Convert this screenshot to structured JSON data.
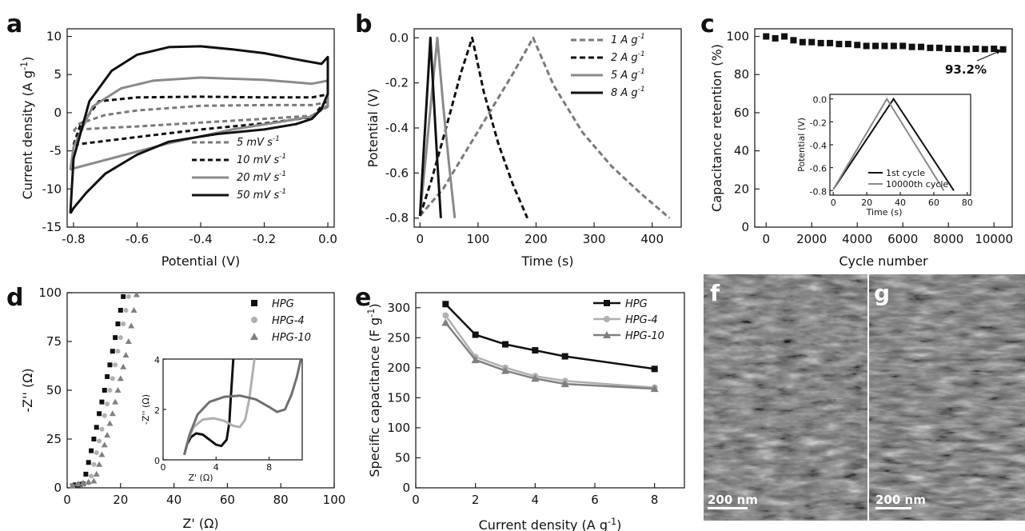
{
  "panel_labels": {
    "a": "a",
    "b": "b",
    "c": "c",
    "d": "d",
    "e": "e",
    "f": "f",
    "g": "g"
  },
  "chart_data": [
    {
      "id": "a",
      "type": "line",
      "xlabel": "Potential (V)",
      "ylabel": "Current density (A g⁻¹)",
      "xlim": [
        -0.82,
        0.02
      ],
      "ylim": [
        -15,
        11
      ],
      "xticks": [
        -0.8,
        -0.6,
        -0.4,
        -0.2,
        0.0
      ],
      "xtick_labels": [
        "-0.8",
        "-0.6",
        "-0.4",
        "-0.2",
        "0.0"
      ],
      "yticks": [
        -15,
        -10,
        -5,
        0,
        5,
        10
      ],
      "ytick_labels": [
        "-15",
        "-10",
        "-5",
        "0",
        "5",
        "10"
      ],
      "legend_position": "bottom-right",
      "series": [
        {
          "name": "5 mV s",
          "sup": "-1",
          "color": "#7a7a7a",
          "dash": "6,4",
          "x": [
            -0.8,
            -0.78,
            -0.7,
            -0.6,
            -0.4,
            -0.2,
            -0.05,
            0.0,
            0.0,
            -0.05,
            -0.2,
            -0.4,
            -0.6,
            -0.7,
            -0.78,
            -0.8
          ],
          "y": [
            -2.4,
            -1.4,
            -0.3,
            0.3,
            0.9,
            1.0,
            1.0,
            1.4,
            0.8,
            -0.4,
            -0.8,
            -1.3,
            -1.8,
            -2.0,
            -2.2,
            -2.4
          ]
        },
        {
          "name": "10 mV s",
          "sup": "-1",
          "color": "#111111",
          "dash": "6,4",
          "x": [
            -0.8,
            -0.78,
            -0.72,
            -0.6,
            -0.4,
            -0.2,
            -0.05,
            0.0,
            0.0,
            -0.05,
            -0.2,
            -0.4,
            -0.6,
            -0.72,
            -0.8
          ],
          "y": [
            -4.2,
            -1.8,
            1.5,
            2.0,
            2.1,
            2.0,
            2.0,
            2.4,
            1.8,
            -0.6,
            -1.4,
            -2.2,
            -3.2,
            -3.8,
            -4.2
          ]
        },
        {
          "name": "20 mV s",
          "sup": "-1",
          "color": "#8a8a8a",
          "dash": "",
          "x": [
            -0.81,
            -0.8,
            -0.74,
            -0.65,
            -0.55,
            -0.4,
            -0.2,
            -0.05,
            0.0,
            0.0,
            -0.05,
            -0.15,
            -0.3,
            -0.5,
            -0.7,
            -0.8,
            -0.81
          ],
          "y": [
            -7.5,
            -4.5,
            0.8,
            3.2,
            4.2,
            4.6,
            4.3,
            3.8,
            4.2,
            1.0,
            -0.5,
            -1.2,
            -2.2,
            -4.0,
            -6.2,
            -7.3,
            -7.5
          ]
        },
        {
          "name": "50 mV s",
          "sup": "-1",
          "color": "#111111",
          "dash": "",
          "x": [
            -0.81,
            -0.8,
            -0.75,
            -0.68,
            -0.6,
            -0.5,
            -0.4,
            -0.3,
            -0.2,
            -0.1,
            -0.02,
            0.0,
            0.0,
            -0.02,
            -0.05,
            -0.1,
            -0.2,
            -0.35,
            -0.5,
            -0.6,
            -0.7,
            -0.76,
            -0.8,
            -0.81
          ],
          "y": [
            -13.2,
            -6.0,
            1.5,
            5.5,
            7.6,
            8.6,
            8.7,
            8.3,
            7.8,
            7.0,
            6.4,
            7.3,
            2.5,
            0.5,
            -0.8,
            -1.5,
            -2.2,
            -2.8,
            -3.8,
            -5.5,
            -8.0,
            -10.5,
            -12.5,
            -13.2
          ]
        }
      ]
    },
    {
      "id": "b",
      "type": "line",
      "xlabel": "Time (s)",
      "ylabel": "Potential (V)",
      "xlim": [
        -10,
        450
      ],
      "ylim": [
        -0.84,
        0.04
      ],
      "xticks": [
        0,
        100,
        200,
        300,
        400
      ],
      "xtick_labels": [
        "0",
        "100",
        "200",
        "300",
        "400"
      ],
      "yticks": [
        -0.8,
        -0.6,
        -0.4,
        -0.2,
        0.0
      ],
      "ytick_labels": [
        "-0.8",
        "-0.6",
        "-0.4",
        "-0.2",
        "0.0"
      ],
      "legend_position": "top-right",
      "series": [
        {
          "name": "1 A g",
          "sup": "-1",
          "color": "#7a7a7a",
          "dash": "7,4",
          "x": [
            0,
            40,
            80,
            120,
            160,
            195,
            230,
            280,
            330,
            380,
            430
          ],
          "y": [
            -0.79,
            -0.67,
            -0.5,
            -0.33,
            -0.16,
            0.0,
            -0.21,
            -0.42,
            -0.57,
            -0.69,
            -0.8
          ]
        },
        {
          "name": "2 A g",
          "sup": "-1",
          "color": "#111111",
          "dash": "7,4",
          "x": [
            0,
            20,
            45,
            70,
            90,
            110,
            135,
            160,
            185
          ],
          "y": [
            -0.79,
            -0.63,
            -0.4,
            -0.16,
            0.0,
            -0.24,
            -0.47,
            -0.65,
            -0.8
          ]
        },
        {
          "name": "5 A g",
          "sup": "-1",
          "color": "#8a8a8a",
          "dash": "",
          "x": [
            0,
            10,
            20,
            30,
            40,
            50,
            60
          ],
          "y": [
            -0.79,
            -0.53,
            -0.26,
            0.0,
            -0.3,
            -0.56,
            -0.8
          ]
        },
        {
          "name": "8 A g",
          "sup": "-1",
          "color": "#111111",
          "dash": "",
          "x": [
            0,
            6,
            12,
            18,
            24,
            30,
            36
          ],
          "y": [
            -0.79,
            -0.52,
            -0.26,
            0.0,
            -0.28,
            -0.55,
            -0.8
          ]
        }
      ]
    },
    {
      "id": "c",
      "type": "scatter",
      "xlabel": "Cycle number",
      "ylabel": "Capacitance retention (%)",
      "xlim": [
        -500,
        10800
      ],
      "ylim": [
        0,
        104
      ],
      "xticks": [
        0,
        2000,
        4000,
        6000,
        8000,
        10000
      ],
      "xtick_labels": [
        "0",
        "2000",
        "4000",
        "6000",
        "8000",
        "10000"
      ],
      "yticks": [
        0,
        20,
        40,
        60,
        80,
        100
      ],
      "ytick_labels": [
        "0",
        "20",
        "40",
        "60",
        "80",
        "100"
      ],
      "annotation": "93.2%",
      "series": [
        {
          "name": "",
          "color": "#111111",
          "x": [
            0,
            400,
            800,
            1200,
            1600,
            2000,
            2400,
            2800,
            3200,
            3600,
            4000,
            4400,
            4800,
            5200,
            5600,
            6000,
            6400,
            6800,
            7200,
            7600,
            8000,
            8400,
            8800,
            9200,
            9600,
            10000,
            10400
          ],
          "y": [
            100,
            99,
            100,
            98,
            97,
            97,
            96.5,
            96.5,
            96,
            96,
            95.5,
            95,
            95,
            95,
            95,
            95,
            94.5,
            94.5,
            94,
            94,
            93.5,
            93.5,
            93.3,
            93.5,
            93.3,
            93.5,
            93.2
          ]
        }
      ],
      "inset": {
        "xlabel": "Time (s)",
        "ylabel": "Potential (V)",
        "xlim": [
          -2,
          82
        ],
        "ylim": [
          -0.84,
          0.04
        ],
        "xticks": [
          0,
          20,
          40,
          60,
          80
        ],
        "xtick_labels": [
          "0",
          "20",
          "40",
          "60",
          "80"
        ],
        "yticks": [
          -0.8,
          -0.6,
          -0.4,
          -0.2,
          0.0
        ],
        "ytick_labels": [
          "-0.8",
          "-0.6",
          "-0.4",
          "-0.2",
          "0.0"
        ],
        "series": [
          {
            "name": "1st cycle",
            "color": "#111111",
            "x": [
              0,
              36,
              72
            ],
            "y": [
              -0.79,
              0.0,
              -0.8
            ]
          },
          {
            "name": "10000th cycle",
            "color": "#8a8a8a",
            "x": [
              0,
              32,
              66
            ],
            "y": [
              -0.79,
              0.0,
              -0.8
            ]
          }
        ]
      }
    },
    {
      "id": "d",
      "type": "scatter",
      "xlabel": "Z' (Ω)",
      "ylabel": "-Z'' (Ω)",
      "xlim": [
        0,
        100
      ],
      "ylim": [
        0,
        100
      ],
      "xticks": [
        0,
        20,
        40,
        60,
        80,
        100
      ],
      "xtick_labels": [
        "0",
        "20",
        "40",
        "60",
        "80",
        "100"
      ],
      "yticks": [
        0,
        25,
        50,
        75,
        100
      ],
      "ytick_labels": [
        "0",
        "25",
        "50",
        "75",
        "100"
      ],
      "legend_position": "top-right",
      "series": [
        {
          "name": "HPG",
          "color": "#111111",
          "marker": "square",
          "x": [
            2,
            3,
            4,
            5,
            6,
            7,
            8,
            9,
            10,
            11,
            12,
            13,
            14,
            15,
            16,
            17,
            18,
            19,
            20,
            21
          ],
          "y": [
            1,
            1.5,
            1.5,
            1.8,
            2,
            7,
            13,
            19,
            25,
            31,
            38,
            44,
            50,
            57,
            63,
            70,
            77,
            84,
            91,
            98
          ]
        },
        {
          "name": "HPG-4",
          "color": "#b0b0b0",
          "marker": "circle",
          "x": [
            2,
            4,
            6,
            8,
            9,
            10,
            11,
            12,
            13,
            14,
            15,
            16,
            17,
            18,
            19,
            20,
            21,
            22,
            23
          ],
          "y": [
            1,
            1.8,
            2,
            2.5,
            6,
            12,
            18,
            24,
            30,
            37,
            43,
            50,
            56,
            63,
            70,
            77,
            84,
            91,
            98
          ]
        },
        {
          "name": "HPG-10",
          "color": "#808080",
          "marker": "triangle",
          "x": [
            2,
            4,
            6,
            8,
            10,
            11,
            12,
            13,
            14,
            15,
            16,
            17,
            18,
            19,
            20,
            21,
            22,
            23,
            24,
            25,
            26
          ],
          "y": [
            1,
            2,
            2.5,
            3,
            3.5,
            7,
            12,
            17,
            22,
            27,
            33,
            38,
            44,
            50,
            56,
            62,
            68,
            75,
            83,
            91,
            99
          ]
        }
      ],
      "inset": {
        "xlabel": "Z' (Ω)",
        "ylabel": "-Z'' (Ω)",
        "xlim": [
          0,
          10.5
        ],
        "ylim": [
          0,
          4
        ],
        "xticks": [
          0,
          4,
          8
        ],
        "xtick_labels": [
          "0",
          "4",
          "8"
        ],
        "yticks": [
          0,
          2,
          4
        ],
        "ytick_labels": [
          "0",
          "2",
          "4"
        ],
        "series": [
          {
            "name": "HPG",
            "color": "#111111",
            "x": [
              1.6,
              1.8,
              2.1,
              2.5,
              3.0,
              3.5,
              4.0,
              4.4,
              4.8,
              5.0,
              5.1,
              5.2,
              5.3
            ],
            "y": [
              0.2,
              0.6,
              0.9,
              1.05,
              1.0,
              0.8,
              0.6,
              0.55,
              0.8,
              1.5,
              2.4,
              3.2,
              4.0
            ]
          },
          {
            "name": "HPG-4",
            "color": "#b0b0b0",
            "x": [
              1.6,
              1.9,
              2.3,
              3.0,
              3.8,
              4.6,
              5.3,
              5.8,
              6.2,
              6.5,
              6.7,
              6.9
            ],
            "y": [
              0.2,
              0.8,
              1.3,
              1.6,
              1.65,
              1.55,
              1.35,
              1.3,
              1.6,
              2.4,
              3.2,
              4.0
            ]
          },
          {
            "name": "HPG-10",
            "color": "#707070",
            "x": [
              1.6,
              2.0,
              2.6,
              3.5,
              4.6,
              5.8,
              7.0,
              8.0,
              8.6,
              9.2,
              9.7,
              10.1,
              10.4
            ],
            "y": [
              0.2,
              1.0,
              1.8,
              2.3,
              2.5,
              2.55,
              2.4,
              2.1,
              1.9,
              2.0,
              2.6,
              3.3,
              4.0
            ]
          }
        ]
      }
    },
    {
      "id": "e",
      "type": "line",
      "xlabel": "Current density (A g⁻¹)",
      "ylabel": "Specific capacitance (F g⁻¹)",
      "xlim": [
        0,
        9
      ],
      "ylim": [
        0,
        325
      ],
      "xticks": [
        0,
        2,
        4,
        6,
        8
      ],
      "xtick_labels": [
        "0",
        "2",
        "4",
        "6",
        "8"
      ],
      "yticks": [
        0,
        50,
        100,
        150,
        200,
        250,
        300
      ],
      "ytick_labels": [
        "0",
        "50",
        "100",
        "150",
        "200",
        "250",
        "300"
      ],
      "legend_position": "top-right",
      "categories": [
        1,
        2,
        3,
        4,
        5,
        8
      ],
      "series": [
        {
          "name": "HPG",
          "color": "#111111",
          "marker": "square",
          "values": [
            306,
            255,
            239,
            229,
            219,
            198
          ]
        },
        {
          "name": "HPG-4",
          "color": "#b0b0b0",
          "marker": "circle",
          "values": [
            287,
            218,
            200,
            186,
            178,
            167
          ]
        },
        {
          "name": "HPG-10",
          "color": "#808080",
          "marker": "triangle",
          "values": [
            275,
            213,
            195,
            182,
            173,
            165
          ]
        }
      ]
    }
  ],
  "sem": {
    "f": {
      "scale": "200 nm"
    },
    "g": {
      "scale": "200 nm"
    }
  }
}
